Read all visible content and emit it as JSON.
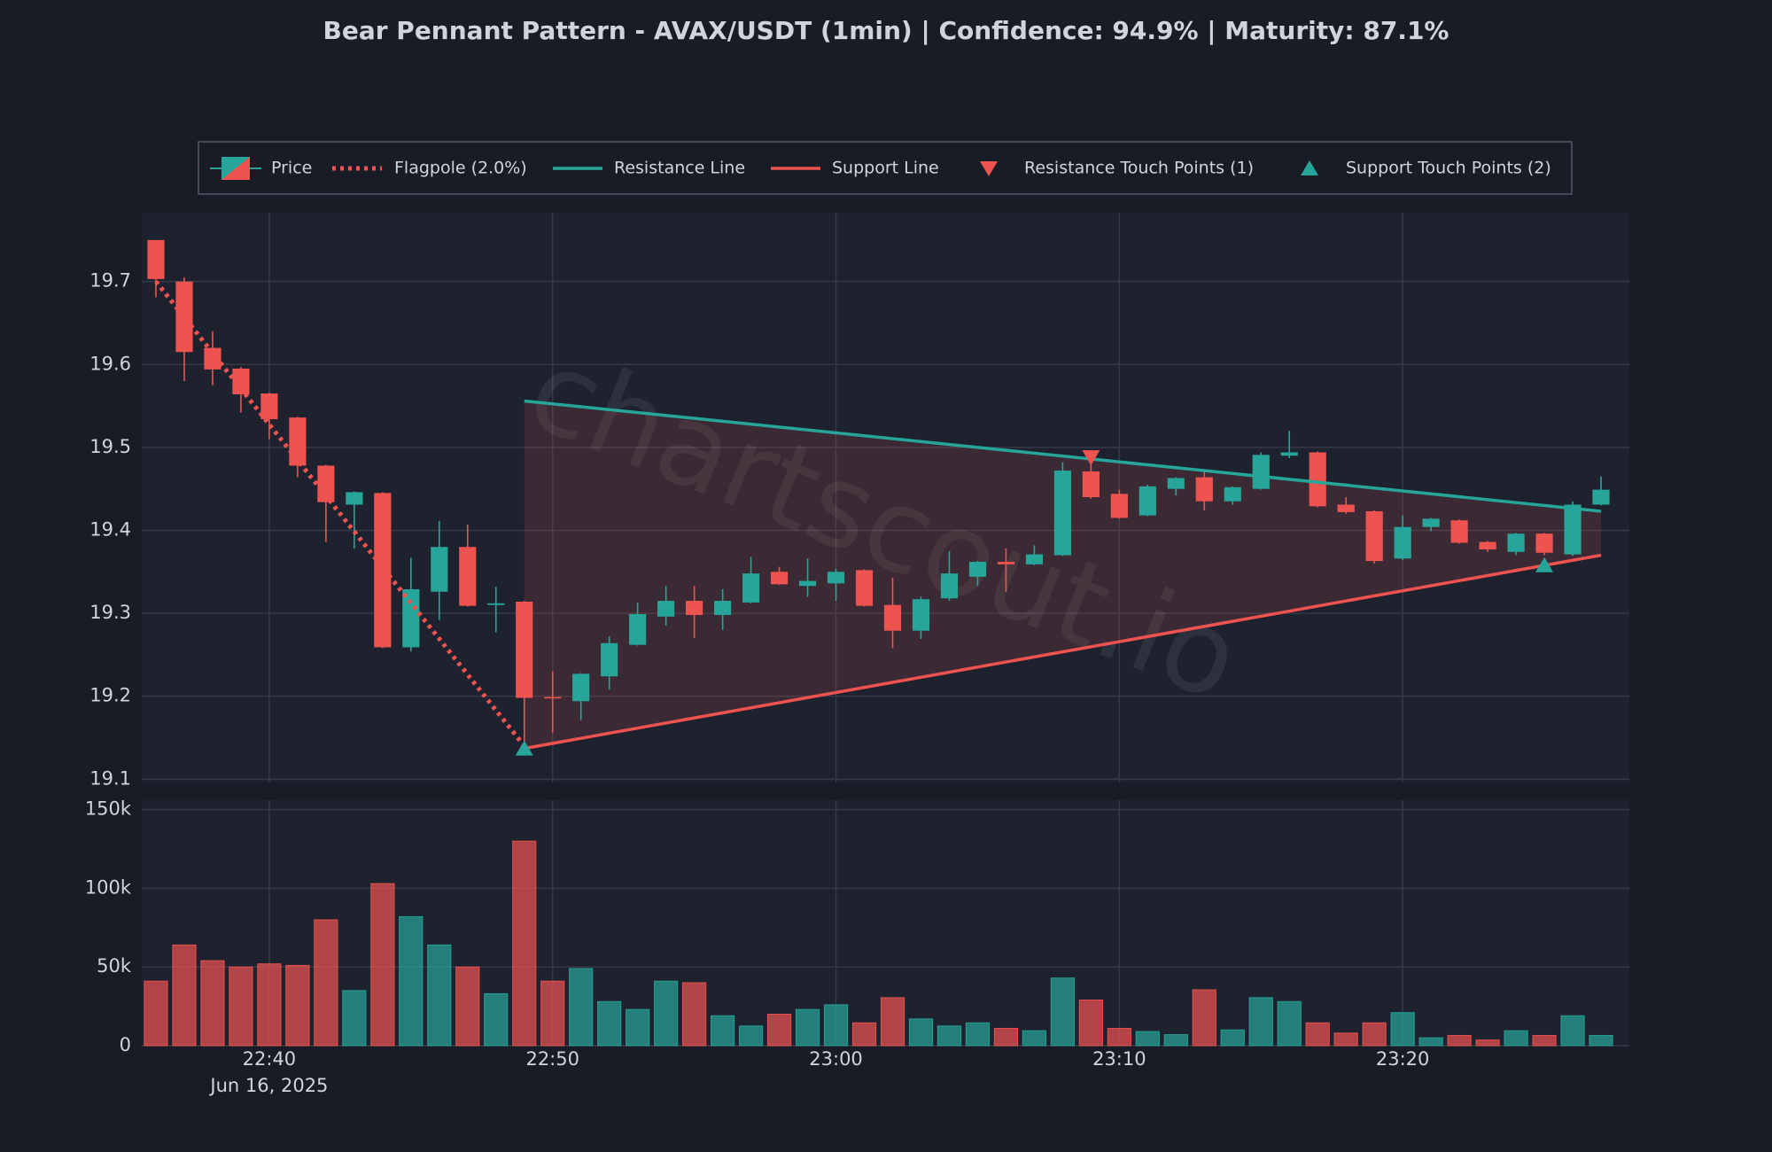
{
  "chart_data": {
    "type": "candlestick",
    "title": "Bear Pennant Pattern - AVAX/USDT (1min) | Confidence: 94.9% | Maturity: 87.1%",
    "watermark": "chartscout.io",
    "price_name": "Price",
    "up_color": "#26a69a",
    "down_color": "#ef5350",
    "x": [
      "22:36",
      "22:37",
      "22:38",
      "22:39",
      "22:40",
      "22:41",
      "22:42",
      "22:43",
      "22:44",
      "22:45",
      "22:46",
      "22:47",
      "22:48",
      "22:49",
      "22:50",
      "22:51",
      "22:52",
      "22:53",
      "22:54",
      "22:55",
      "22:56",
      "22:57",
      "22:58",
      "22:59",
      "23:00",
      "23:01",
      "23:02",
      "23:03",
      "23:04",
      "23:05",
      "23:06",
      "23:07",
      "23:08",
      "23:09",
      "23:10",
      "23:11",
      "23:12",
      "23:13",
      "23:14",
      "23:15",
      "23:16",
      "23:17",
      "23:18",
      "23:19",
      "23:20",
      "23:21",
      "23:22",
      "23:23",
      "23:24",
      "23:25",
      "23:26",
      "23:27"
    ],
    "x_date_label": "Jun 16, 2025",
    "open": [
      19.75,
      19.7,
      19.62,
      19.595,
      19.565,
      19.536,
      19.478,
      19.431,
      19.445,
      19.259,
      19.326,
      19.38,
      19.31,
      19.314,
      19.199,
      19.194,
      19.224,
      19.262,
      19.296,
      19.315,
      19.298,
      19.313,
      19.35,
      19.333,
      19.336,
      19.352,
      19.31,
      19.279,
      19.318,
      19.344,
      19.362,
      19.359,
      19.37,
      19.471,
      19.444,
      19.418,
      19.45,
      19.464,
      19.435,
      19.45,
      19.49,
      19.494,
      19.431,
      19.423,
      19.366,
      19.404,
      19.412,
      19.386,
      19.374,
      19.396,
      19.371,
      19.431
    ],
    "high": [
      19.75,
      19.705,
      19.64,
      19.597,
      19.566,
      19.537,
      19.479,
      19.447,
      19.446,
      19.367,
      19.411,
      19.407,
      19.332,
      19.315,
      19.23,
      19.228,
      19.272,
      19.313,
      19.333,
      19.333,
      19.329,
      19.368,
      19.356,
      19.366,
      19.354,
      19.353,
      19.343,
      19.32,
      19.375,
      19.363,
      19.378,
      19.382,
      19.482,
      19.49,
      19.449,
      19.455,
      19.464,
      19.472,
      19.453,
      19.494,
      19.52,
      19.495,
      19.44,
      19.424,
      19.418,
      19.415,
      19.413,
      19.387,
      19.397,
      19.397,
      19.435,
      19.465
    ],
    "low": [
      19.681,
      19.58,
      19.575,
      19.542,
      19.51,
      19.464,
      19.386,
      19.378,
      19.258,
      19.254,
      19.292,
      19.308,
      19.277,
      19.145,
      19.156,
      19.171,
      19.208,
      19.261,
      19.285,
      19.27,
      19.28,
      19.312,
      19.334,
      19.32,
      19.315,
      19.308,
      19.258,
      19.269,
      19.315,
      19.333,
      19.326,
      19.358,
      19.369,
      19.438,
      19.414,
      19.417,
      19.442,
      19.424,
      19.431,
      19.449,
      19.487,
      19.428,
      19.42,
      19.36,
      19.364,
      19.399,
      19.384,
      19.374,
      19.37,
      19.37,
      19.369,
      19.43
    ],
    "close": [
      19.703,
      19.615,
      19.594,
      19.564,
      19.534,
      19.478,
      19.434,
      19.446,
      19.259,
      19.329,
      19.38,
      19.309,
      19.312,
      19.198,
      19.198,
      19.227,
      19.264,
      19.299,
      19.315,
      19.298,
      19.315,
      19.348,
      19.335,
      19.339,
      19.35,
      19.309,
      19.279,
      19.317,
      19.348,
      19.362,
      19.359,
      19.371,
      19.472,
      19.44,
      19.415,
      19.453,
      19.463,
      19.435,
      19.452,
      19.491,
      19.494,
      19.429,
      19.422,
      19.363,
      19.404,
      19.414,
      19.385,
      19.377,
      19.396,
      19.373,
      19.431,
      19.449
    ],
    "volume": [
      41000,
      64000,
      54000,
      50000,
      52000,
      51000,
      80000,
      35000,
      103000,
      82000,
      64000,
      50000,
      33000,
      130000,
      41000,
      49000,
      28000,
      23000,
      41000,
      40000,
      19000,
      12500,
      20000,
      23000,
      26000,
      14500,
      30500,
      17000,
      12500,
      14500,
      11000,
      9500,
      43000,
      29000,
      11000,
      9000,
      7000,
      35500,
      10000,
      30500,
      28000,
      14500,
      8000,
      14500,
      21000,
      5000,
      6500,
      3600,
      9500,
      6500,
      19000,
      6500
    ],
    "ylim": [
      19.096,
      19.783
    ],
    "yticks": [
      19.1,
      19.2,
      19.3,
      19.4,
      19.5,
      19.6,
      19.7
    ],
    "volume_ylim": [
      0,
      156000
    ],
    "volume_yticks": [
      0,
      {
        "value": 50000,
        "label": "50k"
      },
      {
        "value": 100000,
        "label": "100k"
      },
      {
        "value": 150000,
        "label": "150k"
      }
    ],
    "xticks": [
      "22:40",
      "22:50",
      "23:00",
      "23:10",
      "23:20"
    ],
    "grid": true,
    "legend": "top",
    "lines": [
      {
        "name": "Flagpole (2.0%)",
        "color": "#ef5350",
        "style": "dotted",
        "x": [
          "22:36",
          "22:49"
        ],
        "values": [
          19.7,
          19.14
        ]
      },
      {
        "name": "Resistance Line",
        "color": "#26a69a",
        "style": "solid",
        "x": [
          "22:49",
          "23:27"
        ],
        "values": [
          19.556,
          19.423
        ]
      },
      {
        "name": "Support Line",
        "color": "#ef5350",
        "style": "solid",
        "x": [
          "22:49",
          "23:27"
        ],
        "values": [
          19.137,
          19.37
        ]
      }
    ],
    "markers": [
      {
        "name": "Resistance Touch Points (1)",
        "color": "#ef5350",
        "symbol": "triangle-down",
        "x": [
          "23:09"
        ],
        "values": [
          19.488
        ]
      },
      {
        "name": "Support Touch Points (2)",
        "color": "#26a69a",
        "symbol": "triangle-up",
        "x": [
          "22:49",
          "23:25"
        ],
        "values": [
          19.137,
          19.358
        ]
      }
    ]
  }
}
